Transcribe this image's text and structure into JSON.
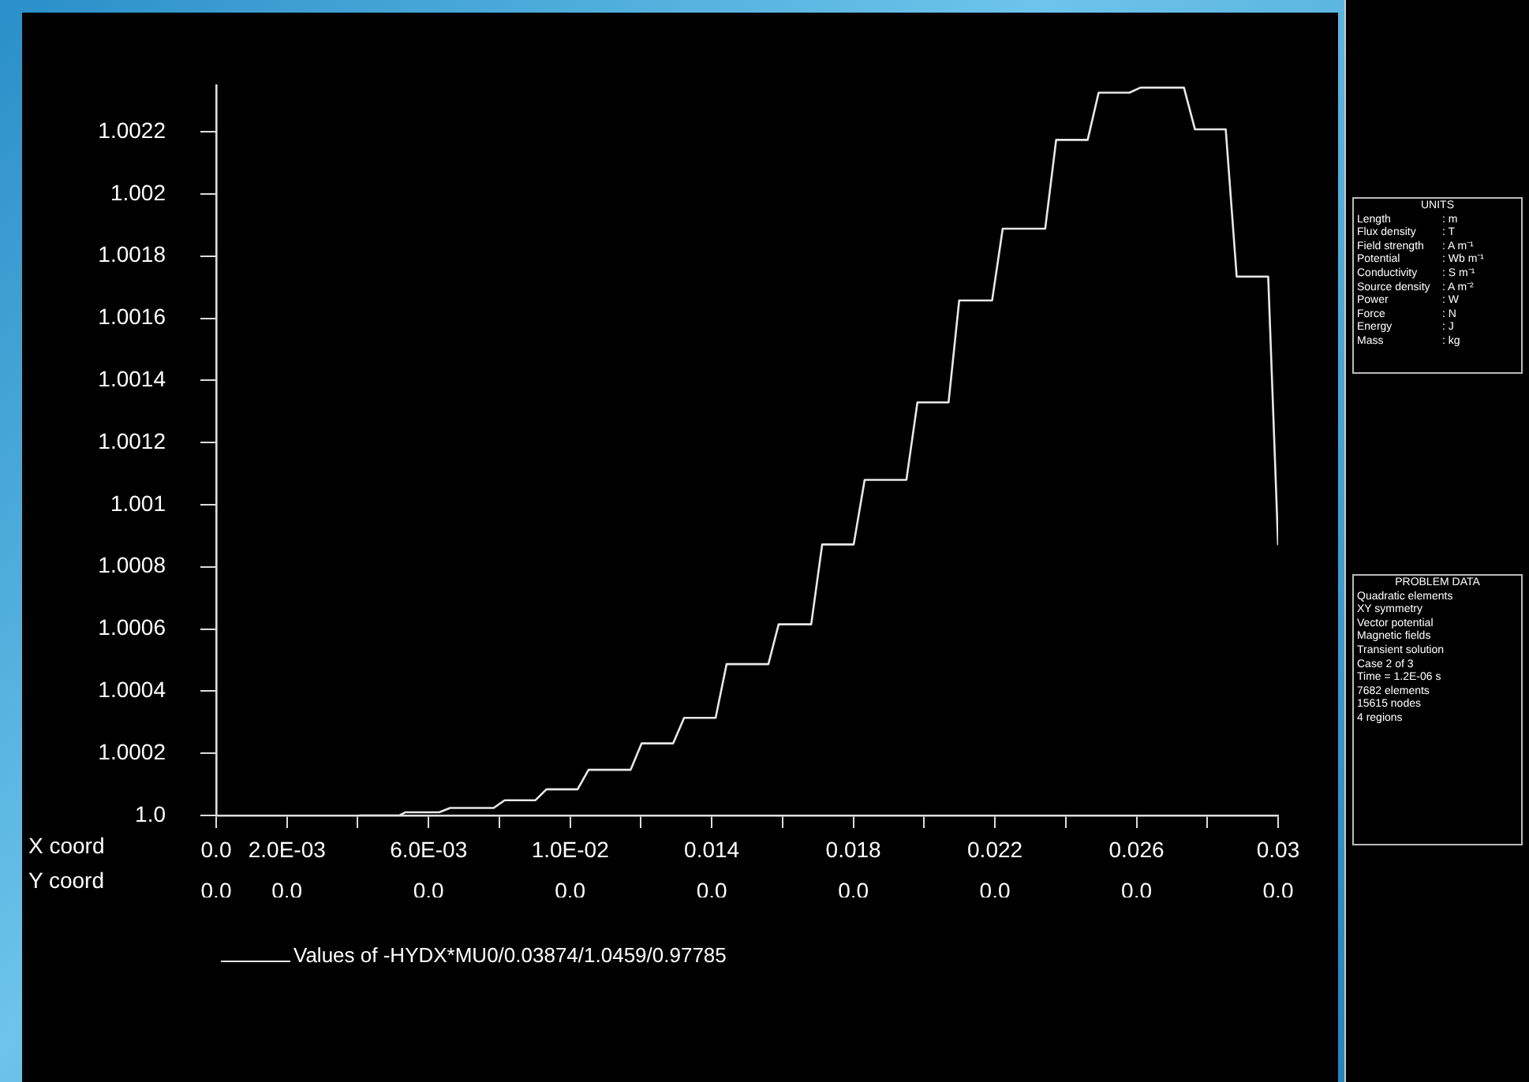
{
  "chart_data": {
    "type": "line",
    "xlabel": "X coord",
    "x2label": "Y coord",
    "legend": "bottom",
    "marker": "none",
    "line_style": "solid",
    "grid": false,
    "xlim": [
      0,
      0.03
    ],
    "xticks": [
      {
        "value": 0,
        "label": "0.0"
      },
      {
        "value": 0.002,
        "label": "2.0E-03"
      },
      {
        "value": 0.004,
        "label": null
      },
      {
        "value": 0.006,
        "label": "6.0E-03"
      },
      {
        "value": 0.008,
        "label": null
      },
      {
        "value": 0.01,
        "label": "1.0E-02"
      },
      {
        "value": 0.012,
        "label": null
      },
      0.014,
      {
        "value": 0.016,
        "label": null
      },
      0.018,
      {
        "value": 0.02,
        "label": null
      },
      0.022,
      {
        "value": 0.024,
        "label": null
      },
      0.026,
      {
        "value": 0.028,
        "label": null
      },
      0.03
    ],
    "x2lim": [
      0,
      0.03
    ],
    "x2ticks": [
      {
        "value": 0,
        "label": "0.0"
      },
      {
        "value": 0.002,
        "label": "0.0"
      },
      {
        "value": 0.006,
        "label": "0.0"
      },
      {
        "value": 0.01,
        "label": "0.0"
      },
      {
        "value": 0.014,
        "label": "0.0"
      },
      {
        "value": 0.018,
        "label": "0.0"
      },
      {
        "value": 0.022,
        "label": "0.0"
      },
      {
        "value": 0.026,
        "label": "0.0"
      },
      {
        "value": 0.03,
        "label": "0.0"
      }
    ],
    "ylim": [
      1.0,
      1.00235
    ],
    "yticks": [
      {
        "value": 1.0,
        "label": "1.0"
      },
      1.0002,
      1.0004,
      1.0006,
      1.0008,
      1.001,
      1.0012,
      1.0014,
      1.0016,
      1.0018,
      1.002,
      1.0022
    ],
    "series": [
      {
        "name": "Values of -HYDX*MU0/0.03874/1.0459/0.97785",
        "color": "#e8e8e8",
        "x": [
          0.00403,
          0.00518,
          0.00534,
          0.0063,
          0.00661,
          0.00784,
          0.00815,
          0.00902,
          0.00933,
          0.01021,
          0.01052,
          0.01171,
          0.01202,
          0.01291,
          0.01322,
          0.01411,
          0.01442,
          0.0156,
          0.01589,
          0.01681,
          0.01712,
          0.01801,
          0.01832,
          0.0195,
          0.01981,
          0.02069,
          0.02099,
          0.02192,
          0.02222,
          0.02342,
          0.02373,
          0.02462,
          0.02493,
          0.0258,
          0.02611,
          0.02734,
          0.02765,
          0.02852,
          0.02883,
          0.02972,
          0.03
        ],
        "values": [
          1.0,
          1.0,
          1.00001,
          1.00001,
          1.000024,
          1.000024,
          1.000049,
          1.000049,
          1.000084,
          1.000084,
          1.000147,
          1.000147,
          1.000232,
          1.000232,
          1.000314,
          1.000314,
          1.000487,
          1.000487,
          1.000615,
          1.000615,
          1.000872,
          1.000872,
          1.00108,
          1.00108,
          1.001329,
          1.001329,
          1.001657,
          1.001657,
          1.001888,
          1.001888,
          1.002174,
          1.002174,
          1.002326,
          1.002326,
          1.002342,
          1.002342,
          1.002208,
          1.002208,
          1.001734,
          1.001734,
          1.00087
        ]
      }
    ],
    "annotations": [
      "UNITS\nLength : m\nFlux density : T\nField strength : A m⁻¹\nPotential : Wb m⁻¹\nConductivity : S m⁻¹\nSource density : A m⁻²\nPower : W\nForce : N\nEnergy : J\nMass : kg",
      "PROBLEM DATA\nQuadratic elements\nXY symmetry\nVector potential\nMagnetic fields\nTransient  solution\nCase 2 of 3\nTime = 1.2E-06 s\n7682 elements\n15615 nodes\n4 regions"
    ]
  }
}
